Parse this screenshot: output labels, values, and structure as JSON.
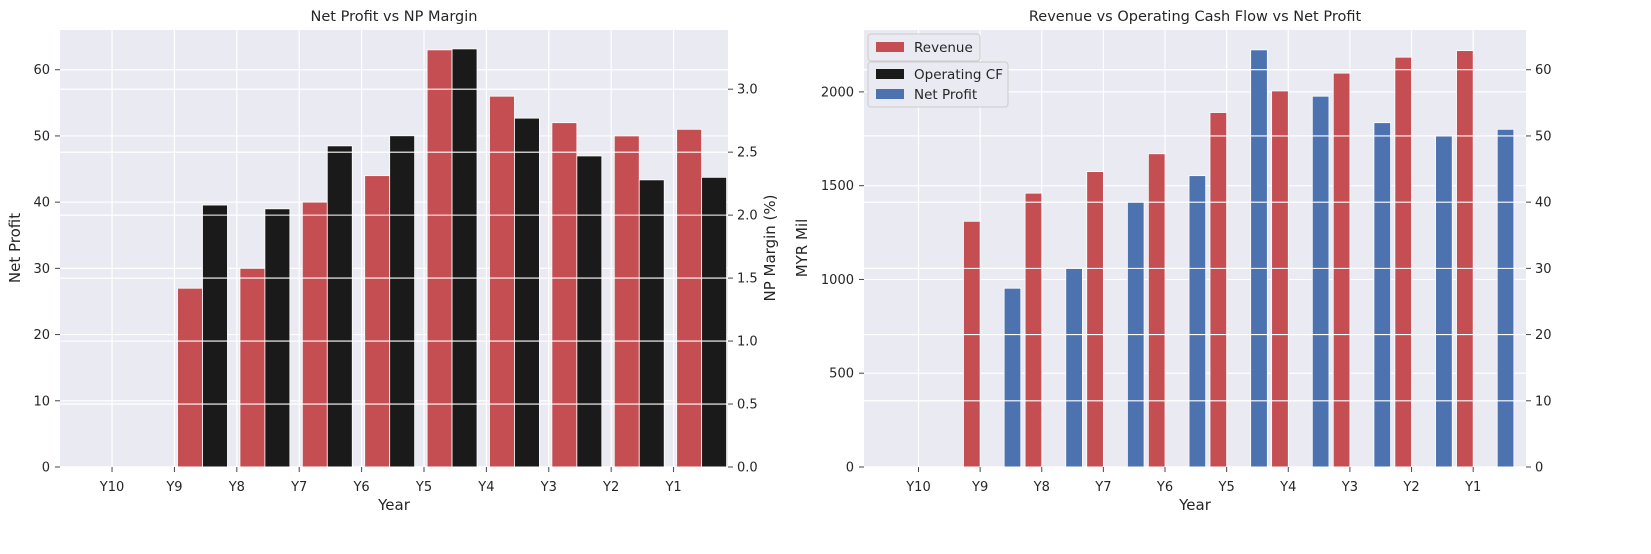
{
  "chart_data": [
    {
      "type": "bar",
      "title": "Net Profit vs NP Margin",
      "xlabel": "Year",
      "ylabel": "Net Profit",
      "ylabel_right": "NP Margin (%)",
      "categories": [
        "Y10",
        "Y9",
        "Y8",
        "Y7",
        "Y6",
        "Y5",
        "Y4",
        "Y3",
        "Y2",
        "Y1"
      ],
      "ylim": [
        0,
        66
      ],
      "ylim_right": [
        0,
        3.47
      ],
      "yticks": [
        0,
        10,
        20,
        30,
        40,
        50,
        60
      ],
      "yticks_right": [
        0.0,
        0.5,
        1.0,
        1.5,
        2.0,
        2.5,
        3.0
      ],
      "series": [
        {
          "axis": "left",
          "color": "#c44e52",
          "values": [
            0,
            27,
            30,
            40,
            44,
            63,
            56,
            52,
            50,
            51
          ]
        },
        {
          "axis": "right",
          "color": "#1a1a1a",
          "values": [
            0,
            2.08,
            2.05,
            2.55,
            2.63,
            3.32,
            2.77,
            2.47,
            2.28,
            2.3
          ]
        }
      ],
      "grid": true
    },
    {
      "type": "bar",
      "title": "Revenue vs Operating Cash Flow vs Net Profit",
      "xlabel": "Year",
      "ylabel": "MYR Mil",
      "categories": [
        "Y10",
        "Y9",
        "Y8",
        "Y7",
        "Y6",
        "Y5",
        "Y4",
        "Y3",
        "Y2",
        "Y1"
      ],
      "ylim": [
        0,
        2330
      ],
      "ylim_right": [
        0,
        66
      ],
      "yticks": [
        0,
        500,
        1000,
        1500,
        2000
      ],
      "yticks_right": [
        0,
        10,
        20,
        30,
        40,
        50,
        60
      ],
      "legend_position": "upper-left",
      "series": [
        {
          "name": "Revenue",
          "axis": "left",
          "color": "#c44e52",
          "values": [
            0,
            1310,
            1460,
            1575,
            1670,
            1890,
            2005,
            2100,
            2185,
            2220
          ]
        },
        {
          "name": "Operating CF",
          "axis": "left",
          "color": "#1a1a1a",
          "values": [
            0,
            0,
            0,
            0,
            0,
            0,
            0,
            0,
            0,
            0
          ]
        },
        {
          "name": "Net Profit",
          "axis": "right",
          "color": "#4c72b0",
          "values": [
            0,
            27,
            30,
            40,
            44,
            63,
            56,
            52,
            50,
            51
          ]
        }
      ],
      "grid": true
    }
  ]
}
